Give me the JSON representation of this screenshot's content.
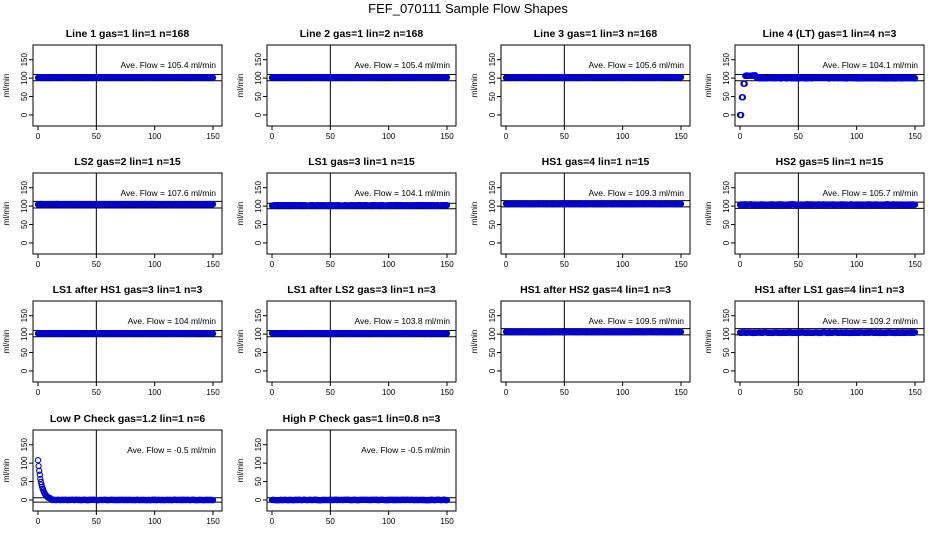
{
  "page_title": "FEF_070111  Sample Flow Shapes",
  "colors": {
    "points": "#0000cc",
    "axis": "#000000",
    "background": "#ffffff"
  },
  "chart_data": [
    {
      "type": "scatter",
      "title": "Line 1 gas=1 lin=1 n=168",
      "ylabel": "ml/min",
      "xlim": [
        0,
        150
      ],
      "ylim": [
        -30,
        190
      ],
      "xticks": [
        0,
        50,
        100,
        150
      ],
      "yticks": [
        0,
        50,
        100,
        150
      ],
      "annotation": "Ave. Flow =  105.4  ml/min",
      "vline": 50,
      "hlines": [
        110,
        93
      ],
      "shape": "flat",
      "base": 102,
      "spread": 1,
      "x_end": 150
    },
    {
      "type": "scatter",
      "title": "Line 2 gas=1 lin=2 n=168",
      "ylabel": "ml/min",
      "xlim": [
        0,
        150
      ],
      "ylim": [
        -30,
        190
      ],
      "xticks": [
        0,
        50,
        100,
        150
      ],
      "yticks": [
        0,
        50,
        100,
        150
      ],
      "annotation": "Ave. Flow =  105.4  ml/min",
      "vline": 50,
      "hlines": [
        110,
        93
      ],
      "shape": "flat",
      "base": 102,
      "spread": 1,
      "x_end": 150
    },
    {
      "type": "scatter",
      "title": "Line 3 gas=1 lin=3 n=168",
      "ylabel": "ml/min",
      "xlim": [
        0,
        150
      ],
      "ylim": [
        -30,
        190
      ],
      "xticks": [
        0,
        50,
        100,
        150
      ],
      "yticks": [
        0,
        50,
        100,
        150
      ],
      "annotation": "Ave. Flow =  105.6  ml/min",
      "vline": 50,
      "hlines": [
        110,
        93
      ],
      "shape": "flat",
      "base": 102,
      "spread": 1,
      "x_end": 150
    },
    {
      "type": "scatter",
      "title": "Line 4 (LT) gas=1 lin=4 n=3",
      "ylabel": "ml/min",
      "xlim": [
        0,
        150
      ],
      "ylim": [
        -30,
        190
      ],
      "xticks": [
        0,
        50,
        100,
        150
      ],
      "yticks": [
        0,
        50,
        100,
        150
      ],
      "annotation": "Ave. Flow =  104.1  ml/min",
      "vline": 50,
      "hlines": [
        110,
        93
      ],
      "shape": "rise",
      "base": 101,
      "spread": 2,
      "x_end": 150
    },
    {
      "type": "scatter",
      "title": "LS2 gas=2 lin=1 n=15",
      "ylabel": "ml/min",
      "xlim": [
        0,
        150
      ],
      "ylim": [
        -30,
        190
      ],
      "xticks": [
        0,
        50,
        100,
        150
      ],
      "yticks": [
        0,
        50,
        100,
        150
      ],
      "annotation": "Ave. Flow =  107.6  ml/min",
      "vline": 50,
      "hlines": [
        113,
        95
      ],
      "shape": "flat",
      "base": 105,
      "spread": 1,
      "x_end": 150
    },
    {
      "type": "scatter",
      "title": "LS1 gas=3 lin=1 n=15",
      "ylabel": "ml/min",
      "xlim": [
        0,
        150
      ],
      "ylim": [
        -30,
        190
      ],
      "xticks": [
        0,
        50,
        100,
        150
      ],
      "yticks": [
        0,
        50,
        100,
        150
      ],
      "annotation": "Ave. Flow =  104.1  ml/min",
      "vline": 50,
      "hlines": [
        108,
        93
      ],
      "shape": "flat",
      "base": 102,
      "spread": 1,
      "x_end": 150
    },
    {
      "type": "scatter",
      "title": "HS1 gas=4 lin=1 n=15",
      "ylabel": "ml/min",
      "xlim": [
        0,
        150
      ],
      "ylim": [
        -30,
        190
      ],
      "xticks": [
        0,
        50,
        100,
        150
      ],
      "yticks": [
        0,
        50,
        100,
        150
      ],
      "annotation": "Ave. Flow =  109.3  ml/min",
      "vline": 50,
      "hlines": [
        115,
        98
      ],
      "shape": "flat",
      "base": 106,
      "spread": 1,
      "x_end": 150
    },
    {
      "type": "scatter",
      "title": "HS2 gas=5 lin=1 n=15",
      "ylabel": "ml/min",
      "xlim": [
        0,
        150
      ],
      "ylim": [
        -30,
        190
      ],
      "xticks": [
        0,
        50,
        100,
        150
      ],
      "yticks": [
        0,
        50,
        100,
        150
      ],
      "annotation": "Ave. Flow =  105.7  ml/min",
      "vline": 50,
      "hlines": [
        111,
        94
      ],
      "shape": "flat",
      "base": 104,
      "spread": 1,
      "x_end": 150
    },
    {
      "type": "scatter",
      "title": "LS1 after HS1 gas=3 lin=1 n=3",
      "ylabel": "ml/min",
      "xlim": [
        0,
        150
      ],
      "ylim": [
        -30,
        190
      ],
      "xticks": [
        0,
        50,
        100,
        150
      ],
      "yticks": [
        0,
        50,
        100,
        150
      ],
      "annotation": "Ave. Flow =  104  ml/min",
      "vline": 50,
      "hlines": [
        110,
        93
      ],
      "shape": "flat",
      "base": 102,
      "spread": 1,
      "x_end": 150
    },
    {
      "type": "scatter",
      "title": "LS1 after LS2 gas=3 lin=1 n=3",
      "ylabel": "ml/min",
      "xlim": [
        0,
        150
      ],
      "ylim": [
        -30,
        190
      ],
      "xticks": [
        0,
        50,
        100,
        150
      ],
      "yticks": [
        0,
        50,
        100,
        150
      ],
      "annotation": "Ave. Flow =  103.8  ml/min",
      "vline": 50,
      "hlines": [
        110,
        93
      ],
      "shape": "flat",
      "base": 102,
      "spread": 1,
      "x_end": 150
    },
    {
      "type": "scatter",
      "title": "HS1 after HS2 gas=4 lin=1 n=3",
      "ylabel": "ml/min",
      "xlim": [
        0,
        150
      ],
      "ylim": [
        -30,
        190
      ],
      "xticks": [
        0,
        50,
        100,
        150
      ],
      "yticks": [
        0,
        50,
        100,
        150
      ],
      "annotation": "Ave. Flow =  109.5  ml/min",
      "vline": 50,
      "hlines": [
        115,
        98
      ],
      "shape": "flat",
      "base": 106,
      "spread": 1,
      "x_end": 150
    },
    {
      "type": "scatter",
      "title": "HS1 after LS1 gas=4 lin=1 n=3",
      "ylabel": "ml/min",
      "xlim": [
        0,
        150
      ],
      "ylim": [
        -30,
        190
      ],
      "xticks": [
        0,
        50,
        100,
        150
      ],
      "yticks": [
        0,
        50,
        100,
        150
      ],
      "annotation": "Ave. Flow =  109.2  ml/min",
      "vline": 50,
      "hlines": [
        115,
        98
      ],
      "shape": "flat",
      "base": 104,
      "spread": 1,
      "x_end": 150
    },
    {
      "type": "scatter",
      "title": "Low P Check gas=1.2 lin=1 n=6",
      "ylabel": "ml/min",
      "xlim": [
        0,
        150
      ],
      "ylim": [
        -30,
        190
      ],
      "xticks": [
        0,
        50,
        100,
        150
      ],
      "yticks": [
        0,
        50,
        100,
        150
      ],
      "annotation": "Ave. Flow =  -0.5  ml/min",
      "vline": 50,
      "hlines": [
        6,
        -6
      ],
      "shape": "decay",
      "base": 0,
      "spread": 0.5,
      "x_end": 150
    },
    {
      "type": "scatter",
      "title": "High P Check gas=1 lin=0.8 n=3",
      "ylabel": "ml/min",
      "xlim": [
        0,
        150
      ],
      "ylim": [
        -30,
        190
      ],
      "xticks": [
        0,
        50,
        100,
        150
      ],
      "yticks": [
        0,
        50,
        100,
        150
      ],
      "annotation": "Ave. Flow =  -0.5  ml/min",
      "vline": 50,
      "hlines": [
        6,
        -6
      ],
      "shape": "flat",
      "base": 0,
      "spread": 0.5,
      "x_end": 150
    }
  ]
}
